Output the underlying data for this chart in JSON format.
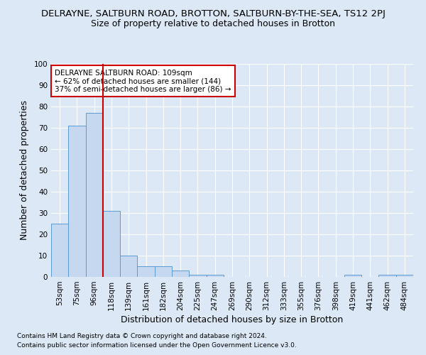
{
  "title_line1": "DELRAYNE, SALTBURN ROAD, BROTTON, SALTBURN-BY-THE-SEA, TS12 2PJ",
  "title_line2": "Size of property relative to detached houses in Brotton",
  "xlabel": "Distribution of detached houses by size in Brotton",
  "ylabel": "Number of detached properties",
  "categories": [
    "53sqm",
    "75sqm",
    "96sqm",
    "118sqm",
    "139sqm",
    "161sqm",
    "182sqm",
    "204sqm",
    "225sqm",
    "247sqm",
    "269sqm",
    "290sqm",
    "312sqm",
    "333sqm",
    "355sqm",
    "376sqm",
    "398sqm",
    "419sqm",
    "441sqm",
    "462sqm",
    "484sqm"
  ],
  "values": [
    25,
    71,
    77,
    31,
    10,
    5,
    5,
    3,
    1,
    1,
    0,
    0,
    0,
    0,
    0,
    0,
    0,
    1,
    0,
    1,
    1
  ],
  "bar_color": "#c5d8f0",
  "bar_edge_color": "#5b9bd5",
  "vline_color": "#cc0000",
  "ylim": [
    0,
    100
  ],
  "yticks": [
    0,
    10,
    20,
    30,
    40,
    50,
    60,
    70,
    80,
    90,
    100
  ],
  "annotation_text": "DELRAYNE SALTBURN ROAD: 109sqm\n← 62% of detached houses are smaller (144)\n37% of semi-detached houses are larger (86) →",
  "annotation_box_color": "#ffffff",
  "annotation_box_edgecolor": "#cc0000",
  "footnote1": "Contains HM Land Registry data © Crown copyright and database right 2024.",
  "footnote2": "Contains public sector information licensed under the Open Government Licence v3.0.",
  "bg_color": "#dce8f5",
  "plot_bg_color": "#dce8f5",
  "grid_color": "#ffffff",
  "title_fontsize": 9.5,
  "subtitle_fontsize": 9,
  "tick_fontsize": 7.5,
  "label_fontsize": 9,
  "annot_fontsize": 7.5,
  "footnote_fontsize": 6.5
}
